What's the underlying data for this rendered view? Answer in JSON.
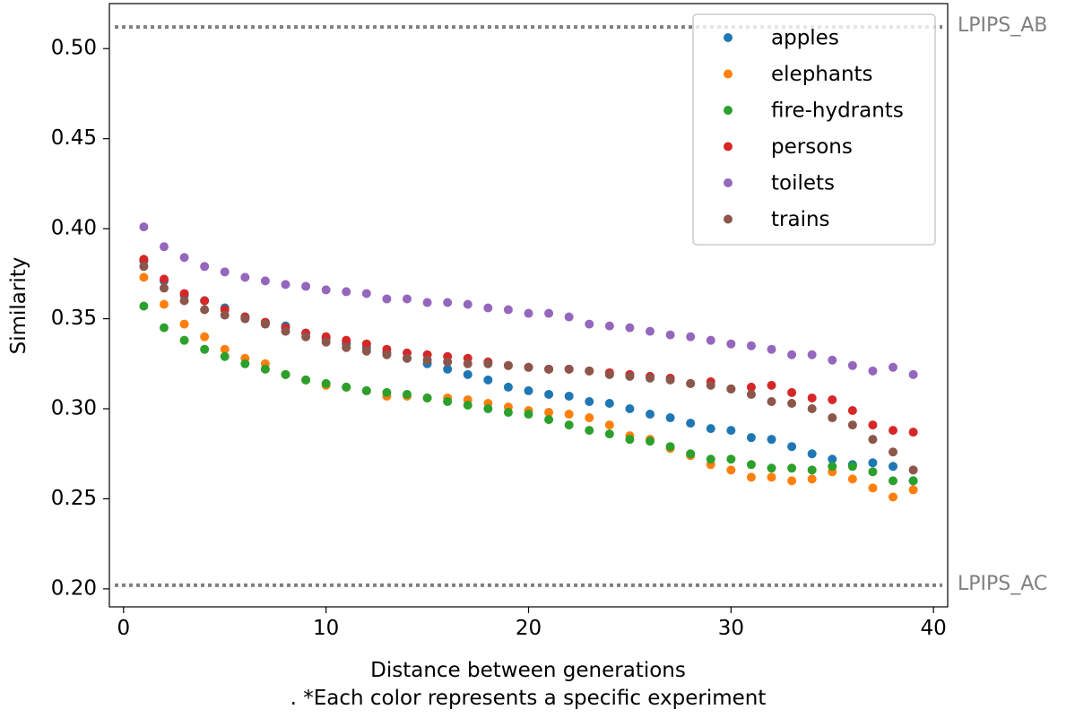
{
  "chart_data": {
    "type": "scatter",
    "title": "",
    "xlabel": "Distance between generations",
    "xlabel_note": ". *Each color represents a specific experiment",
    "ylabel": "Similarity",
    "xlim": [
      -0.7,
      40.7
    ],
    "ylim": [
      0.19,
      0.525
    ],
    "xticks": [
      0,
      10,
      20,
      30,
      40
    ],
    "xtick_labels": [
      "0",
      "10",
      "20",
      "30",
      "40"
    ],
    "yticks": [
      0.2,
      0.25,
      0.3,
      0.35,
      0.4,
      0.45,
      0.5
    ],
    "ytick_labels": [
      "0.20",
      "0.25",
      "0.30",
      "0.35",
      "0.40",
      "0.45",
      "0.50"
    ],
    "grid": false,
    "legend_position": "top-right",
    "reference_lines": [
      {
        "name": "LPIPS_AB",
        "label": "LPIPS_AB",
        "y": 0.512,
        "color": "#808080",
        "style": "dotted"
      },
      {
        "name": "LPIPS_AC",
        "label": "LPIPS_AC",
        "y": 0.202,
        "color": "#808080",
        "style": "dotted"
      }
    ],
    "x": [
      1,
      2,
      3,
      4,
      5,
      6,
      7,
      8,
      9,
      10,
      11,
      12,
      13,
      14,
      15,
      16,
      17,
      18,
      19,
      20,
      21,
      22,
      23,
      24,
      25,
      26,
      27,
      28,
      29,
      30,
      31,
      32,
      33,
      34,
      35,
      36,
      37,
      38,
      39
    ],
    "series": [
      {
        "name": "apples",
        "color": "#1f77b4",
        "values": [
          0.382,
          0.371,
          0.363,
          0.36,
          0.356,
          0.351,
          0.348,
          0.346,
          0.342,
          0.339,
          0.336,
          0.334,
          0.331,
          0.328,
          0.325,
          0.322,
          0.319,
          0.316,
          0.312,
          0.31,
          0.308,
          0.307,
          0.304,
          0.303,
          0.3,
          0.297,
          0.295,
          0.292,
          0.289,
          0.288,
          0.284,
          0.283,
          0.279,
          0.275,
          0.272,
          0.269,
          0.27,
          0.268,
          0.26
        ]
      },
      {
        "name": "elephants",
        "color": "#ff7f0e",
        "values": [
          0.373,
          0.358,
          0.347,
          0.34,
          0.333,
          0.328,
          0.325,
          0.319,
          0.316,
          0.313,
          0.312,
          0.31,
          0.307,
          0.307,
          0.306,
          0.306,
          0.305,
          0.303,
          0.301,
          0.299,
          0.298,
          0.297,
          0.295,
          0.291,
          0.285,
          0.283,
          0.278,
          0.274,
          0.269,
          0.266,
          0.262,
          0.262,
          0.26,
          0.261,
          0.265,
          0.261,
          0.256,
          0.251,
          0.255
        ]
      },
      {
        "name": "fire-hydrants",
        "color": "#2ca02c",
        "values": [
          0.357,
          0.345,
          0.338,
          0.333,
          0.329,
          0.325,
          0.322,
          0.319,
          0.316,
          0.314,
          0.312,
          0.31,
          0.309,
          0.308,
          0.306,
          0.304,
          0.302,
          0.3,
          0.298,
          0.297,
          0.294,
          0.291,
          0.288,
          0.286,
          0.283,
          0.282,
          0.279,
          0.275,
          0.272,
          0.272,
          0.269,
          0.267,
          0.267,
          0.266,
          0.268,
          0.268,
          0.265,
          0.26,
          0.26
        ]
      },
      {
        "name": "persons",
        "color": "#d62728",
        "values": [
          0.383,
          0.372,
          0.364,
          0.36,
          0.355,
          0.351,
          0.348,
          0.345,
          0.342,
          0.34,
          0.338,
          0.336,
          0.333,
          0.331,
          0.33,
          0.329,
          0.328,
          0.326,
          0.324,
          0.323,
          0.322,
          0.322,
          0.321,
          0.32,
          0.319,
          0.318,
          0.317,
          0.314,
          0.315,
          0.311,
          0.312,
          0.313,
          0.309,
          0.306,
          0.305,
          0.299,
          0.291,
          0.288,
          0.287
        ]
      },
      {
        "name": "toilets",
        "color": "#9467bd",
        "values": [
          0.401,
          0.39,
          0.384,
          0.379,
          0.376,
          0.373,
          0.371,
          0.369,
          0.368,
          0.366,
          0.365,
          0.364,
          0.361,
          0.361,
          0.359,
          0.359,
          0.358,
          0.356,
          0.355,
          0.353,
          0.353,
          0.351,
          0.347,
          0.346,
          0.345,
          0.343,
          0.341,
          0.34,
          0.338,
          0.336,
          0.335,
          0.333,
          0.33,
          0.33,
          0.327,
          0.324,
          0.321,
          0.323,
          0.319
        ]
      },
      {
        "name": "trains",
        "color": "#8c564b",
        "values": [
          0.379,
          0.367,
          0.36,
          0.355,
          0.352,
          0.35,
          0.347,
          0.343,
          0.34,
          0.337,
          0.334,
          0.332,
          0.33,
          0.328,
          0.327,
          0.326,
          0.325,
          0.325,
          0.324,
          0.323,
          0.322,
          0.322,
          0.321,
          0.319,
          0.318,
          0.317,
          0.316,
          0.314,
          0.313,
          0.311,
          0.308,
          0.304,
          0.303,
          0.3,
          0.295,
          0.291,
          0.283,
          0.276,
          0.266
        ]
      }
    ]
  }
}
